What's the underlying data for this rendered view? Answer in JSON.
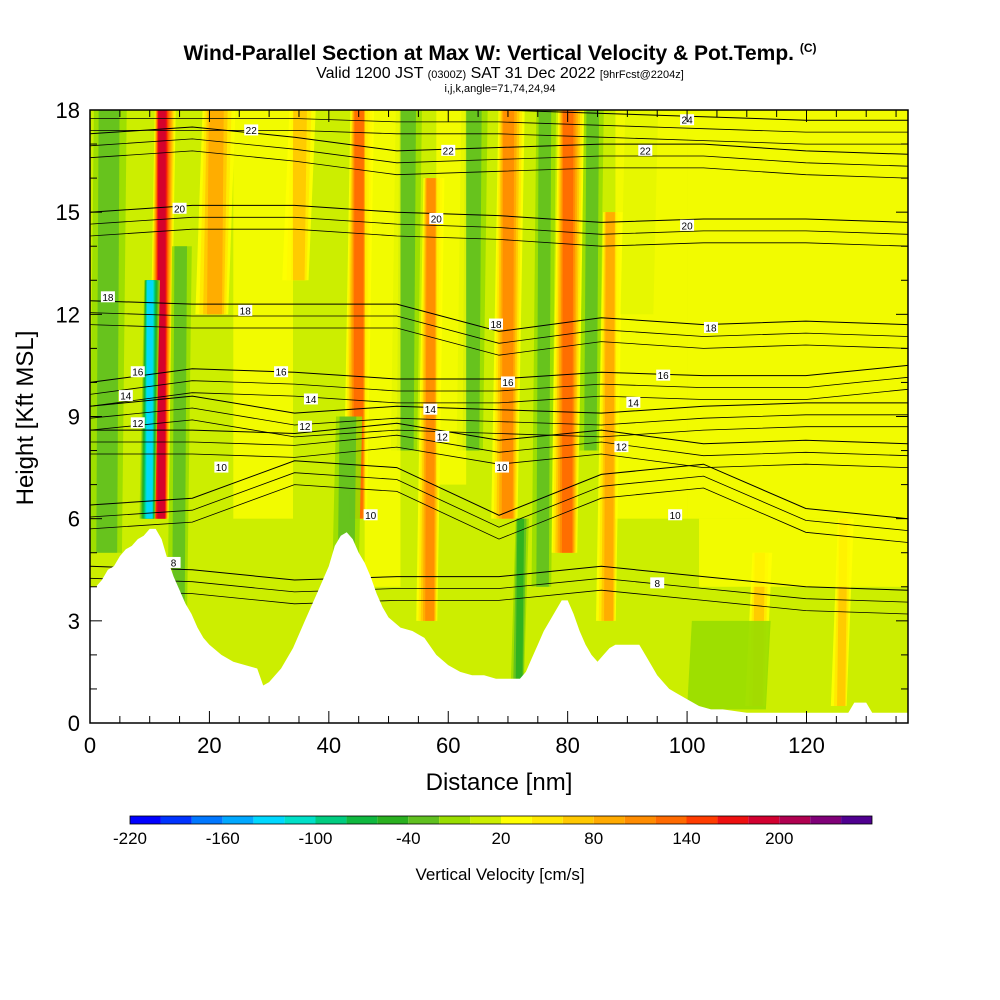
{
  "title": {
    "main": "Wind-Parallel Section at Max W: Vertical Velocity & Pot.Temp.",
    "copyright": "(C)",
    "valid_prefix": "Valid 1200 JST",
    "valid_zulu": "(0300Z)",
    "valid_date": "SAT 31 Dec 2022",
    "forecast": "[9hrFcst@2204z]",
    "indices": "i,j,k,angle=71,74,24,94"
  },
  "chart_data": {
    "type": "heatmap",
    "xlabel": "Distance [nm]",
    "ylabel": "Height [Kft MSL]",
    "xlim": [
      0,
      137
    ],
    "ylim": [
      0,
      18
    ],
    "x_ticks": [
      0,
      20,
      40,
      60,
      80,
      100,
      120
    ],
    "y_ticks": [
      0,
      3,
      6,
      9,
      12,
      15,
      18
    ],
    "colorbar": {
      "title": "Vertical Velocity [cm/s]",
      "labels": [
        "-220",
        "-160",
        "-100",
        "-40",
        "20",
        "80",
        "140",
        "200"
      ],
      "colors": [
        "#0000ff",
        "#0033ff",
        "#0077ff",
        "#00a8ff",
        "#00d8ff",
        "#00e0c8",
        "#00cc80",
        "#10b840",
        "#2ab020",
        "#60c020",
        "#99dd00",
        "#ccee00",
        "#ffff00",
        "#ffe800",
        "#ffc800",
        "#ffaa00",
        "#ff8c00",
        "#ff6a00",
        "#ff3c00",
        "#ee1010",
        "#d20030",
        "#b00050",
        "#800078",
        "#500090"
      ]
    },
    "terrain_height_kft": [
      [
        0,
        4
      ],
      [
        1,
        4
      ],
      [
        2,
        4.2
      ],
      [
        3,
        4.5
      ],
      [
        4,
        4.6
      ],
      [
        5,
        4.9
      ],
      [
        6,
        5.1
      ],
      [
        7,
        5.2
      ],
      [
        8,
        5.4
      ],
      [
        9,
        5.5
      ],
      [
        10,
        5.7
      ],
      [
        11,
        5.7
      ],
      [
        12,
        5.4
      ],
      [
        13,
        4.8
      ],
      [
        14,
        4.3
      ],
      [
        15,
        3.9
      ],
      [
        16,
        3.5
      ],
      [
        17,
        3.2
      ],
      [
        18,
        2.8
      ],
      [
        19,
        2.5
      ],
      [
        20,
        2.3
      ],
      [
        22,
        2.0
      ],
      [
        24,
        1.8
      ],
      [
        26,
        1.7
      ],
      [
        28,
        1.6
      ],
      [
        29,
        1.1
      ],
      [
        30,
        1.2
      ],
      [
        32,
        1.6
      ],
      [
        34,
        2.2
      ],
      [
        36,
        3.0
      ],
      [
        38,
        3.8
      ],
      [
        40,
        4.6
      ],
      [
        41,
        5.2
      ],
      [
        42,
        5.5
      ],
      [
        43,
        5.6
      ],
      [
        44,
        5.4
      ],
      [
        45,
        5.0
      ],
      [
        46,
        4.7
      ],
      [
        47,
        4.3
      ],
      [
        48,
        3.8
      ],
      [
        49,
        3.4
      ],
      [
        50,
        3.1
      ],
      [
        52,
        2.8
      ],
      [
        54,
        2.7
      ],
      [
        56,
        2.5
      ],
      [
        58,
        2.0
      ],
      [
        60,
        1.7
      ],
      [
        62,
        1.5
      ],
      [
        64,
        1.4
      ],
      [
        66,
        1.4
      ],
      [
        68,
        1.3
      ],
      [
        70,
        1.3
      ],
      [
        72,
        1.3
      ],
      [
        73,
        1.5
      ],
      [
        74,
        1.9
      ],
      [
        75,
        2.3
      ],
      [
        76,
        2.7
      ],
      [
        77,
        3.0
      ],
      [
        78,
        3.3
      ],
      [
        79,
        3.6
      ],
      [
        80,
        3.6
      ],
      [
        81,
        3.2
      ],
      [
        82,
        2.7
      ],
      [
        83,
        2.3
      ],
      [
        84,
        2.0
      ],
      [
        85,
        1.8
      ],
      [
        86,
        2.0
      ],
      [
        87,
        2.2
      ],
      [
        88,
        2.3
      ],
      [
        90,
        2.3
      ],
      [
        92,
        2.3
      ],
      [
        93,
        2.0
      ],
      [
        94,
        1.7
      ],
      [
        95,
        1.4
      ],
      [
        96,
        1.2
      ],
      [
        97,
        1.0
      ],
      [
        98,
        0.9
      ],
      [
        100,
        0.7
      ],
      [
        102,
        0.5
      ],
      [
        104,
        0.4
      ],
      [
        106,
        0.4
      ],
      [
        110,
        0.3
      ],
      [
        120,
        0.3
      ],
      [
        127,
        0.3
      ],
      [
        128,
        0.6
      ],
      [
        130,
        0.6
      ],
      [
        131,
        0.3
      ],
      [
        137,
        0.3
      ]
    ],
    "theta_contour_levels": [
      8,
      10,
      12,
      14,
      16,
      18,
      20,
      22,
      24
    ],
    "theta_contour_heights_kft": [
      {
        "level": 8,
        "h": [
          4.6,
          4.5,
          4.2,
          4.3,
          4.3,
          4.6,
          4.3,
          4.0,
          3.9
        ]
      },
      {
        "level": 10,
        "h": [
          6.4,
          6.6,
          7.7,
          7.5,
          6.1,
          7.3,
          7.6,
          6.3,
          6.0
        ]
      },
      {
        "level": 12,
        "h": [
          8.6,
          8.6,
          8.5,
          8.8,
          8.3,
          8.6,
          8.2,
          8.3,
          8.2
        ]
      },
      {
        "level": 14,
        "h": [
          9.3,
          9.6,
          9.1,
          9.3,
          9.2,
          9.1,
          9.3,
          9.4,
          9.4
        ]
      },
      {
        "level": 16,
        "h": [
          10.0,
          10.4,
          10.3,
          10.1,
          10.1,
          10.3,
          10.2,
          10.2,
          10.5
        ]
      },
      {
        "level": 18,
        "h": [
          12.4,
          12.3,
          12.3,
          12.3,
          11.5,
          11.9,
          11.7,
          11.8,
          11.7
        ]
      },
      {
        "level": 20,
        "h": [
          15.0,
          15.2,
          15.2,
          15.0,
          14.9,
          14.7,
          14.8,
          14.8,
          14.7
        ]
      },
      {
        "level": 22,
        "h": [
          17.3,
          17.5,
          17.2,
          16.8,
          16.9,
          17.0,
          17.0,
          16.8,
          16.7
        ]
      },
      {
        "level": 24,
        "h": [
          18.1,
          18.1,
          18.1,
          18.0,
          18.0,
          17.9,
          17.8,
          17.7,
          17.7
        ]
      }
    ],
    "theta_contour_labels": [
      {
        "text": "22",
        "x": 27,
        "y": 17.4
      },
      {
        "text": "22",
        "x": 60,
        "y": 16.8
      },
      {
        "text": "22",
        "x": 93,
        "y": 16.8
      },
      {
        "text": "24",
        "x": 100,
        "y": 17.7
      },
      {
        "text": "20",
        "x": 15,
        "y": 15.1
      },
      {
        "text": "20",
        "x": 58,
        "y": 14.8
      },
      {
        "text": "20",
        "x": 100,
        "y": 14.6
      },
      {
        "text": "18",
        "x": 3,
        "y": 12.5
      },
      {
        "text": "18",
        "x": 26,
        "y": 12.1
      },
      {
        "text": "18",
        "x": 68,
        "y": 11.7
      },
      {
        "text": "18",
        "x": 104,
        "y": 11.6
      },
      {
        "text": "16",
        "x": 8,
        "y": 10.3
      },
      {
        "text": "16",
        "x": 32,
        "y": 10.3
      },
      {
        "text": "16",
        "x": 70,
        "y": 10.0
      },
      {
        "text": "16",
        "x": 96,
        "y": 10.2
      },
      {
        "text": "14",
        "x": 6,
        "y": 9.6
      },
      {
        "text": "14",
        "x": 37,
        "y": 9.5
      },
      {
        "text": "14",
        "x": 57,
        "y": 9.2
      },
      {
        "text": "14",
        "x": 91,
        "y": 9.4
      },
      {
        "text": "12",
        "x": 8,
        "y": 8.8
      },
      {
        "text": "12",
        "x": 36,
        "y": 8.7
      },
      {
        "text": "12",
        "x": 59,
        "y": 8.4
      },
      {
        "text": "12",
        "x": 89,
        "y": 8.1
      },
      {
        "text": "10",
        "x": 22,
        "y": 7.5
      },
      {
        "text": "10",
        "x": 47,
        "y": 6.1
      },
      {
        "text": "10",
        "x": 69,
        "y": 7.5
      },
      {
        "text": "10",
        "x": 98,
        "y": 6.1
      },
      {
        "text": "8",
        "x": 14,
        "y": 4.7
      },
      {
        "text": "8",
        "x": 95,
        "y": 4.1
      }
    ],
    "updraft_columns": [
      {
        "x": 12,
        "w": 1.6,
        "peak_cm_s": 170,
        "top_kft": 18,
        "bottom_kft": 6
      },
      {
        "x": 10,
        "w": 1.2,
        "peak_cm_s": -130,
        "top_kft": 13,
        "bottom_kft": 6
      },
      {
        "x": 45,
        "w": 1.8,
        "peak_cm_s": 110,
        "top_kft": 18,
        "bottom_kft": 6
      },
      {
        "x": 57,
        "w": 1.6,
        "peak_cm_s": 90,
        "top_kft": 16,
        "bottom_kft": 3
      },
      {
        "x": 70,
        "w": 2.0,
        "peak_cm_s": 100,
        "top_kft": 18,
        "bottom_kft": 6
      },
      {
        "x": 72,
        "w": 1.0,
        "peak_cm_s": -60,
        "top_kft": 6,
        "bottom_kft": 1.3
      },
      {
        "x": 80,
        "w": 2.0,
        "peak_cm_s": 120,
        "top_kft": 18,
        "bottom_kft": 5
      },
      {
        "x": 87,
        "w": 1.5,
        "peak_cm_s": 70,
        "top_kft": 15,
        "bottom_kft": 3
      },
      {
        "x": 21,
        "w": 2.5,
        "peak_cm_s": 70,
        "top_kft": 18,
        "bottom_kft": 12
      },
      {
        "x": 35,
        "w": 2.0,
        "peak_cm_s": 60,
        "top_kft": 18,
        "bottom_kft": 13
      },
      {
        "x": 112,
        "w": 1.5,
        "peak_cm_s": 50,
        "top_kft": 5,
        "bottom_kft": 0.5
      },
      {
        "x": 126,
        "w": 1.2,
        "peak_cm_s": 60,
        "top_kft": 6,
        "bottom_kft": 0.5
      },
      {
        "x": 3,
        "w": 2.5,
        "peak_cm_s": -35,
        "top_kft": 18,
        "bottom_kft": 5
      },
      {
        "x": 15,
        "w": 1.5,
        "peak_cm_s": -30,
        "top_kft": 14,
        "bottom_kft": 3
      },
      {
        "x": 43,
        "w": 2.0,
        "peak_cm_s": -40,
        "top_kft": 9,
        "bottom_kft": 3
      },
      {
        "x": 53,
        "w": 2.0,
        "peak_cm_s": -30,
        "top_kft": 18,
        "bottom_kft": 8
      },
      {
        "x": 64,
        "w": 2.0,
        "peak_cm_s": -30,
        "top_kft": 18,
        "bottom_kft": 8
      },
      {
        "x": 76,
        "w": 1.5,
        "peak_cm_s": -40,
        "top_kft": 18,
        "bottom_kft": 4
      },
      {
        "x": 84,
        "w": 1.5,
        "peak_cm_s": -35,
        "top_kft": 18,
        "bottom_kft": 8
      },
      {
        "x": 92,
        "w": 2.5,
        "peak_cm_s": -25,
        "top_kft": 18,
        "bottom_kft": 12
      },
      {
        "x": 107,
        "w": 6.0,
        "peak_cm_s": -15,
        "top_kft": 3,
        "bottom_kft": 0.4
      }
    ]
  }
}
